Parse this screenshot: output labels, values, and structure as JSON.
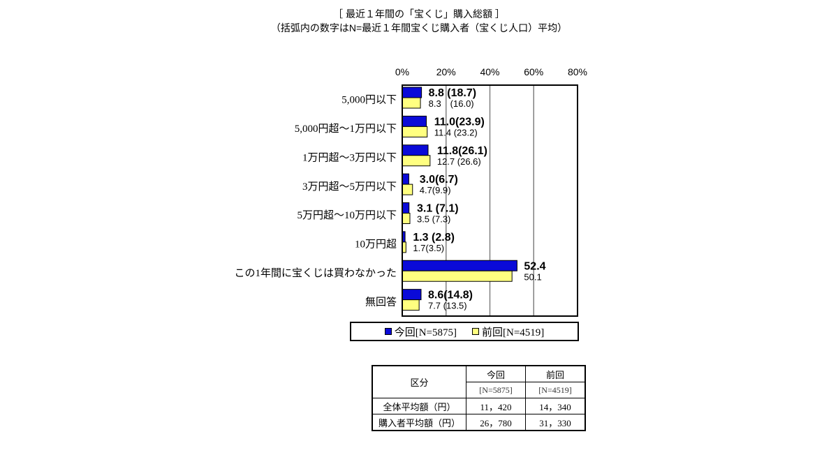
{
  "title": "［ 最近１年間の「宝くじ」購入総額 ］",
  "subtitle": "（括弧内の数字はN=最近１年間宝くじ購入者（宝くじ人口）平均）",
  "colors": {
    "current": "#0a0ad8",
    "previous": "#ffff80"
  },
  "chart_data": {
    "type": "bar",
    "orientation": "horizontal",
    "xlim": [
      0,
      80
    ],
    "x_ticks": [
      "0%",
      "20%",
      "40%",
      "60%",
      "80%"
    ],
    "grid": true,
    "legend_position": "bottom",
    "categories": [
      "5,000円以下",
      "5,000円超～1万円以下",
      "1万円超～3万円以下",
      "3万円超～5万円以下",
      "5万円超～10万円以下",
      "10万円超",
      "この1年間に宝くじは買わなかった",
      "無回答"
    ],
    "series": [
      {
        "name": "今回[N=5875]",
        "values": [
          8.8,
          11.0,
          11.8,
          3.0,
          3.1,
          1.3,
          52.4,
          8.6
        ],
        "paren": [
          18.7,
          23.9,
          26.1,
          6.7,
          7.1,
          2.8,
          null,
          14.8
        ]
      },
      {
        "name": "前回[N=4519]",
        "values": [
          8.3,
          11.4,
          12.7,
          4.7,
          3.5,
          1.7,
          50.1,
          7.7
        ],
        "paren": [
          16.0,
          23.2,
          26.6,
          9.9,
          7.3,
          3.5,
          null,
          13.5
        ]
      }
    ],
    "current_labels": [
      "8.8 (18.7)",
      "11.0(23.9)",
      "11.8(26.1)",
      "3.0(6.7)",
      "3.1 (7.1)",
      "1.3 (2.8)",
      "52.4",
      "8.6(14.8)"
    ],
    "previous_labels": [
      "8.3　(16.0)",
      "11.4 (23.2)",
      "12.7 (26.6)",
      "4.7(9.9)",
      "3.5 (7.3)",
      "1.7(3.5)",
      "50.1",
      "7.7 (13.5)"
    ]
  },
  "legend": {
    "current": "今回[N=5875]",
    "previous": "前回[N=4519]"
  },
  "summary_table": {
    "header_label": "区分",
    "col_current": "今回",
    "col_previous": "前回",
    "n_current": "[N=5875]",
    "n_previous": "[N=4519]",
    "rows": [
      {
        "label": "全体平均額（円）",
        "current": "11，420",
        "previous": "14，340"
      },
      {
        "label": "購入者平均額（円）",
        "current": "26，780",
        "previous": "31，330"
      }
    ]
  }
}
